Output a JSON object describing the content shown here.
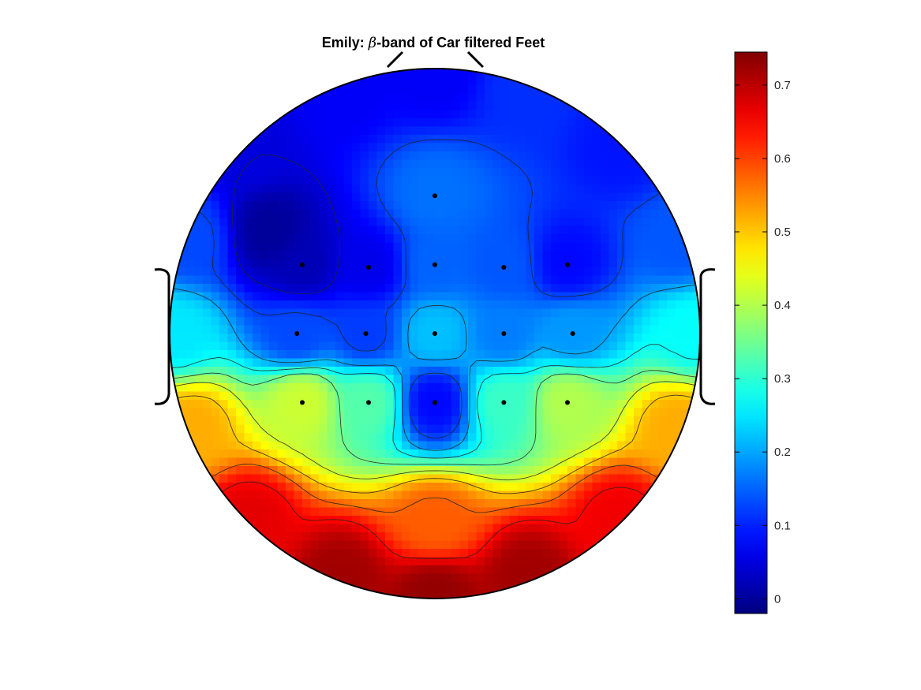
{
  "chart_data": {
    "type": "heatmap",
    "subtype": "eeg-topoplot",
    "title": {
      "prefix": "Emily: ",
      "greek": "β",
      "suffix": "-band of Car filtered Feet"
    },
    "colormap": "jet",
    "clim": [
      -0.02,
      0.745
    ],
    "colorbar": {
      "location": "right",
      "ticks": [
        0,
        0.1,
        0.2,
        0.3,
        0.4,
        0.5,
        0.6,
        0.7
      ],
      "tick_labels": [
        "0",
        "0.1",
        "0.2",
        "0.3",
        "0.4",
        "0.5",
        "0.6",
        "0.7"
      ]
    },
    "contour_levels": [
      0.05,
      0.125,
      0.2,
      0.275,
      0.35,
      0.425,
      0.5,
      0.575,
      0.65
    ],
    "head": {
      "nose": "top",
      "ears": "left-right",
      "contour_lines": true
    },
    "electrodes": [
      {
        "x": 0.0,
        "y": 0.52,
        "value": 0.16
      },
      {
        "x": -0.5,
        "y": 0.26,
        "value": 0.02
      },
      {
        "x": -0.25,
        "y": 0.25,
        "value": 0.06
      },
      {
        "x": 0.0,
        "y": 0.26,
        "value": 0.15
      },
      {
        "x": 0.26,
        "y": 0.25,
        "value": 0.14
      },
      {
        "x": 0.5,
        "y": 0.26,
        "value": 0.08
      },
      {
        "x": -0.52,
        "y": 0.0,
        "value": 0.13
      },
      {
        "x": -0.26,
        "y": 0.0,
        "value": 0.12
      },
      {
        "x": 0.0,
        "y": 0.0,
        "value": 0.22
      },
      {
        "x": 0.26,
        "y": 0.0,
        "value": 0.17
      },
      {
        "x": 0.52,
        "y": 0.0,
        "value": 0.19
      },
      {
        "x": -0.5,
        "y": -0.26,
        "value": 0.42
      },
      {
        "x": -0.25,
        "y": -0.26,
        "value": 0.33
      },
      {
        "x": 0.0,
        "y": -0.26,
        "value": 0.08
      },
      {
        "x": 0.26,
        "y": -0.26,
        "value": 0.31
      },
      {
        "x": 0.5,
        "y": -0.26,
        "value": 0.4
      }
    ],
    "boundary_points": [
      {
        "x": 0.0,
        "y": 0.98,
        "value": 0.07
      },
      {
        "x": 0.35,
        "y": 0.92,
        "value": 0.11
      },
      {
        "x": -0.35,
        "y": 0.92,
        "value": 0.07
      },
      {
        "x": 0.7,
        "y": 0.7,
        "value": 0.09
      },
      {
        "x": -0.7,
        "y": 0.7,
        "value": 0.05
      },
      {
        "x": 0.92,
        "y": 0.35,
        "value": 0.14
      },
      {
        "x": -0.92,
        "y": 0.35,
        "value": 0.13
      },
      {
        "x": 0.98,
        "y": 0.0,
        "value": 0.27
      },
      {
        "x": -0.98,
        "y": 0.0,
        "value": 0.25
      },
      {
        "x": 0.92,
        "y": -0.35,
        "value": 0.52
      },
      {
        "x": -0.92,
        "y": -0.35,
        "value": 0.52
      },
      {
        "x": 0.7,
        "y": -0.7,
        "value": 0.66
      },
      {
        "x": -0.7,
        "y": -0.7,
        "value": 0.67
      },
      {
        "x": 0.35,
        "y": -0.92,
        "value": 0.72
      },
      {
        "x": -0.35,
        "y": -0.92,
        "value": 0.72
      },
      {
        "x": 0.0,
        "y": -0.98,
        "value": 0.73
      },
      {
        "x": -0.62,
        "y": 0.38,
        "value": 0.0
      },
      {
        "x": 0.0,
        "y": -0.72,
        "value": 0.58
      }
    ]
  }
}
